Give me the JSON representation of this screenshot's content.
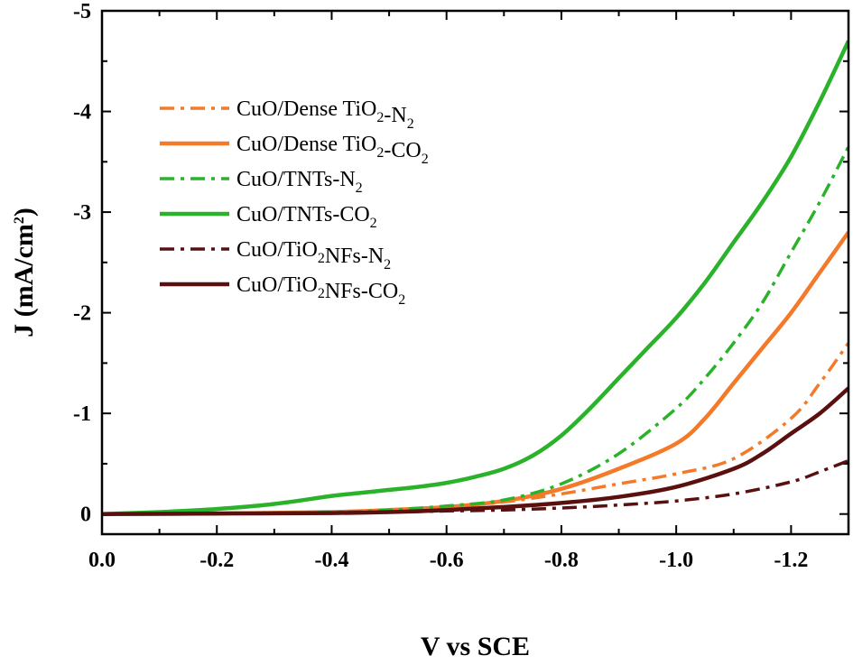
{
  "chart_data": {
    "type": "line",
    "xlabel": "V vs SCE",
    "ylabel_main": "J (mA/cm",
    "ylabel_sup": "2",
    "ylabel_close": ")",
    "xlim": [
      0.0,
      -1.3
    ],
    "ylim": [
      0.2,
      -5
    ],
    "x_axis_reversed": true,
    "y_axis_reversed": true,
    "xticks": [
      0.0,
      -0.2,
      -0.4,
      -0.6,
      -0.8,
      -1.0,
      -1.2
    ],
    "xtick_labels": [
      "0.0",
      "-0.2",
      "-0.4",
      "-0.6",
      "-0.8",
      "-1.0",
      "-1.2"
    ],
    "yticks": [
      0,
      -1,
      -2,
      -3,
      -4,
      -5
    ],
    "ytick_labels": [
      "0",
      "-1",
      "-2",
      "-3",
      "-4",
      "-5"
    ],
    "legend_position": "upper-left",
    "series": [
      {
        "name": "CuO/Dense TiO2-N2",
        "legend": [
          {
            "t": "CuO/Dense TiO"
          },
          {
            "t": "2",
            "sub": true
          },
          {
            "t": "-N"
          },
          {
            "t": "2",
            "sub": true
          }
        ],
        "color": "#F47A2A",
        "dash": "dashdot",
        "x": [
          0.0,
          -0.2,
          -0.4,
          -0.5,
          -0.6,
          -0.7,
          -0.8,
          -0.9,
          -1.0,
          -1.1,
          -1.2,
          -1.25,
          -1.3
        ],
        "y": [
          0.0,
          -0.005,
          -0.02,
          -0.04,
          -0.07,
          -0.12,
          -0.2,
          -0.3,
          -0.4,
          -0.55,
          -0.95,
          -1.3,
          -1.7
        ]
      },
      {
        "name": "CuO/Dense TiO2-CO2",
        "legend": [
          {
            "t": "CuO/Dense TiO"
          },
          {
            "t": "2",
            "sub": true
          },
          {
            "t": "-CO"
          },
          {
            "t": "2",
            "sub": true
          }
        ],
        "color": "#F47A2A",
        "dash": "solid",
        "x": [
          0.0,
          -0.2,
          -0.4,
          -0.5,
          -0.6,
          -0.7,
          -0.8,
          -0.9,
          -1.0,
          -1.05,
          -1.1,
          -1.15,
          -1.2,
          -1.25,
          -1.3
        ],
        "y": [
          0.0,
          -0.005,
          -0.02,
          -0.04,
          -0.07,
          -0.13,
          -0.25,
          -0.45,
          -0.7,
          -0.95,
          -1.3,
          -1.65,
          -2.0,
          -2.4,
          -2.8
        ]
      },
      {
        "name": "CuO/TNTs-N2",
        "legend": [
          {
            "t": "CuO/TNTs-N"
          },
          {
            "t": "2",
            "sub": true
          }
        ],
        "color": "#2BB22B",
        "dash": "dashdot",
        "x": [
          0.0,
          -0.2,
          -0.4,
          -0.5,
          -0.6,
          -0.7,
          -0.8,
          -0.9,
          -1.0,
          -1.05,
          -1.1,
          -1.15,
          -1.2,
          -1.25,
          -1.3
        ],
        "y": [
          0.0,
          -0.005,
          -0.02,
          -0.04,
          -0.08,
          -0.14,
          -0.3,
          -0.6,
          -1.05,
          -1.35,
          -1.7,
          -2.1,
          -2.6,
          -3.1,
          -3.65
        ]
      },
      {
        "name": "CuO/TNTs-CO2",
        "legend": [
          {
            "t": "CuO/TNTs-CO"
          },
          {
            "t": "2",
            "sub": true
          }
        ],
        "color": "#2BB22B",
        "dash": "solid",
        "x": [
          0.0,
          -0.1,
          -0.2,
          -0.3,
          -0.4,
          -0.45,
          -0.5,
          -0.55,
          -0.6,
          -0.65,
          -0.7,
          -0.75,
          -0.8,
          -0.85,
          -0.9,
          -0.95,
          -1.0,
          -1.05,
          -1.1,
          -1.15,
          -1.2,
          -1.25,
          -1.3
        ],
        "y": [
          0.0,
          -0.02,
          -0.05,
          -0.1,
          -0.18,
          -0.21,
          -0.24,
          -0.27,
          -0.31,
          -0.37,
          -0.45,
          -0.58,
          -0.78,
          -1.05,
          -1.35,
          -1.65,
          -1.95,
          -2.3,
          -2.7,
          -3.1,
          -3.55,
          -4.1,
          -4.7
        ]
      },
      {
        "name": "CuO/TiO2NFs-N2",
        "legend": [
          {
            "t": "CuO/TiO"
          },
          {
            "t": "2",
            "sub": true
          },
          {
            "t": "NFs-N"
          },
          {
            "t": "2",
            "sub": true
          }
        ],
        "color": "#5B1010",
        "dash": "dashdot",
        "x": [
          0.0,
          -0.2,
          -0.4,
          -0.5,
          -0.6,
          -0.7,
          -0.8,
          -0.9,
          -1.0,
          -1.1,
          -1.2,
          -1.25,
          -1.3
        ],
        "y": [
          0.0,
          -0.005,
          -0.01,
          -0.02,
          -0.03,
          -0.04,
          -0.06,
          -0.09,
          -0.13,
          -0.2,
          -0.32,
          -0.42,
          -0.53
        ]
      },
      {
        "name": "CuO/TiO2NFs-CO2",
        "legend": [
          {
            "t": "CuO/TiO"
          },
          {
            "t": "2",
            "sub": true
          },
          {
            "t": "NFs-CO"
          },
          {
            "t": "2",
            "sub": true
          }
        ],
        "color": "#5B1010",
        "dash": "solid",
        "x": [
          0.0,
          -0.2,
          -0.4,
          -0.5,
          -0.6,
          -0.7,
          -0.8,
          -0.9,
          -1.0,
          -1.1,
          -1.15,
          -1.2,
          -1.25,
          -1.3
        ],
        "y": [
          0.0,
          -0.005,
          -0.01,
          -0.02,
          -0.04,
          -0.07,
          -0.11,
          -0.17,
          -0.27,
          -0.45,
          -0.6,
          -0.8,
          -1.0,
          -1.25
        ]
      }
    ]
  }
}
